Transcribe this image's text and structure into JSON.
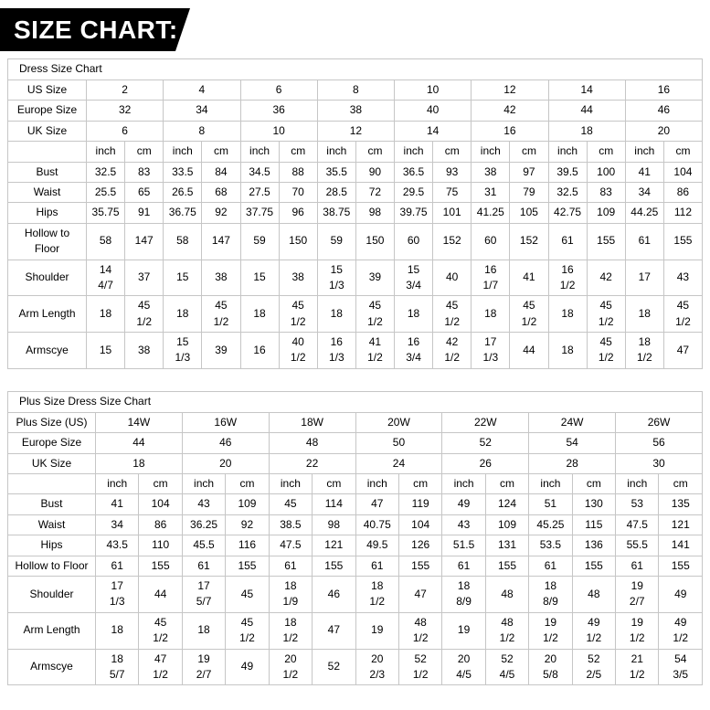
{
  "banner": {
    "title": "SIZE CHART:"
  },
  "colors": {
    "banner_bg": "#000000",
    "banner_text": "#ffffff",
    "table_border": "#c6c6c6",
    "text": "#000000",
    "background": "#ffffff"
  },
  "tables": [
    {
      "id": "dress-size-chart",
      "title": "Dress Size Chart",
      "unit_headers": [
        "inch",
        "cm"
      ],
      "size_rows": [
        {
          "label": "US Size",
          "values": [
            "2",
            "4",
            "6",
            "8",
            "10",
            "12",
            "14",
            "16"
          ]
        },
        {
          "label": "Europe Size",
          "values": [
            "32",
            "34",
            "36",
            "38",
            "40",
            "42",
            "44",
            "46"
          ]
        },
        {
          "label": "UK Size",
          "values": [
            "6",
            "8",
            "10",
            "12",
            "14",
            "16",
            "18",
            "20"
          ]
        }
      ],
      "measure_rows": [
        {
          "label": "Bust",
          "values": [
            "32.5",
            "83",
            "33.5",
            "84",
            "34.5",
            "88",
            "35.5",
            "90",
            "36.5",
            "93",
            "38",
            "97",
            "39.5",
            "100",
            "41",
            "104"
          ]
        },
        {
          "label": "Waist",
          "values": [
            "25.5",
            "65",
            "26.5",
            "68",
            "27.5",
            "70",
            "28.5",
            "72",
            "29.5",
            "75",
            "31",
            "79",
            "32.5",
            "83",
            "34",
            "86"
          ]
        },
        {
          "label": "Hips",
          "values": [
            "35.75",
            "91",
            "36.75",
            "92",
            "37.75",
            "96",
            "38.75",
            "98",
            "39.75",
            "101",
            "41.25",
            "105",
            "42.75",
            "109",
            "44.25",
            "112"
          ]
        },
        {
          "label": "Hollow to Floor",
          "values": [
            "58",
            "147",
            "58",
            "147",
            "59",
            "150",
            "59",
            "150",
            "60",
            "152",
            "60",
            "152",
            "61",
            "155",
            "61",
            "155"
          ]
        },
        {
          "label": "Shoulder",
          "values": [
            "14 4/7",
            "37",
            "15",
            "38",
            "15",
            "38",
            "15 1/3",
            "39",
            "15 3/4",
            "40",
            "16 1/7",
            "41",
            "16 1/2",
            "42",
            "17",
            "43"
          ]
        },
        {
          "label": "Arm Length",
          "values": [
            "18",
            "45 1/2",
            "18",
            "45 1/2",
            "18",
            "45 1/2",
            "18",
            "45 1/2",
            "18",
            "45 1/2",
            "18",
            "45 1/2",
            "18",
            "45 1/2",
            "18",
            "45 1/2"
          ]
        },
        {
          "label": "Armscye",
          "values": [
            "15",
            "38",
            "15 1/3",
            "39",
            "16",
            "40 1/2",
            "16 1/3",
            "41 1/2",
            "16 3/4",
            "42 1/2",
            "17 1/3",
            "44",
            "18",
            "45 1/2",
            "18 1/2",
            "47"
          ]
        }
      ]
    },
    {
      "id": "plus-size-dress-size-chart",
      "title": "Plus Size Dress Size Chart",
      "unit_headers": [
        "inch",
        "cm"
      ],
      "size_rows": [
        {
          "label": "Plus Size (US)",
          "values": [
            "14W",
            "16W",
            "18W",
            "20W",
            "22W",
            "24W",
            "26W"
          ]
        },
        {
          "label": "Europe Size",
          "values": [
            "44",
            "46",
            "48",
            "50",
            "52",
            "54",
            "56"
          ]
        },
        {
          "label": "UK Size",
          "values": [
            "18",
            "20",
            "22",
            "24",
            "26",
            "28",
            "30"
          ]
        }
      ],
      "measure_rows": [
        {
          "label": "Bust",
          "values": [
            "41",
            "104",
            "43",
            "109",
            "45",
            "114",
            "47",
            "119",
            "49",
            "124",
            "51",
            "130",
            "53",
            "135"
          ]
        },
        {
          "label": "Waist",
          "values": [
            "34",
            "86",
            "36.25",
            "92",
            "38.5",
            "98",
            "40.75",
            "104",
            "43",
            "109",
            "45.25",
            "115",
            "47.5",
            "121"
          ]
        },
        {
          "label": "Hips",
          "values": [
            "43.5",
            "110",
            "45.5",
            "116",
            "47.5",
            "121",
            "49.5",
            "126",
            "51.5",
            "131",
            "53.5",
            "136",
            "55.5",
            "141"
          ]
        },
        {
          "label": "Hollow to Floor",
          "values": [
            "61",
            "155",
            "61",
            "155",
            "61",
            "155",
            "61",
            "155",
            "61",
            "155",
            "61",
            "155",
            "61",
            "155"
          ]
        },
        {
          "label": "Shoulder",
          "values": [
            "17 1/3",
            "44",
            "17 5/7",
            "45",
            "18 1/9",
            "46",
            "18 1/2",
            "47",
            "18 8/9",
            "48",
            "18 8/9",
            "48",
            "19 2/7",
            "49"
          ]
        },
        {
          "label": "Arm Length",
          "values": [
            "18",
            "45 1/2",
            "18",
            "45 1/2",
            "18 1/2",
            "47",
            "19",
            "48 1/2",
            "19",
            "48 1/2",
            "19 1/2",
            "49 1/2",
            "19 1/2",
            "49 1/2"
          ]
        },
        {
          "label": "Armscye",
          "values": [
            "18 5/7",
            "47 1/2",
            "19 2/7",
            "49",
            "20 1/2",
            "52",
            "20 2/3",
            "52 1/2",
            "20 4/5",
            "52 4/5",
            "20 5/8",
            "52 2/5",
            "21 1/2",
            "54 3/5"
          ]
        }
      ]
    }
  ]
}
